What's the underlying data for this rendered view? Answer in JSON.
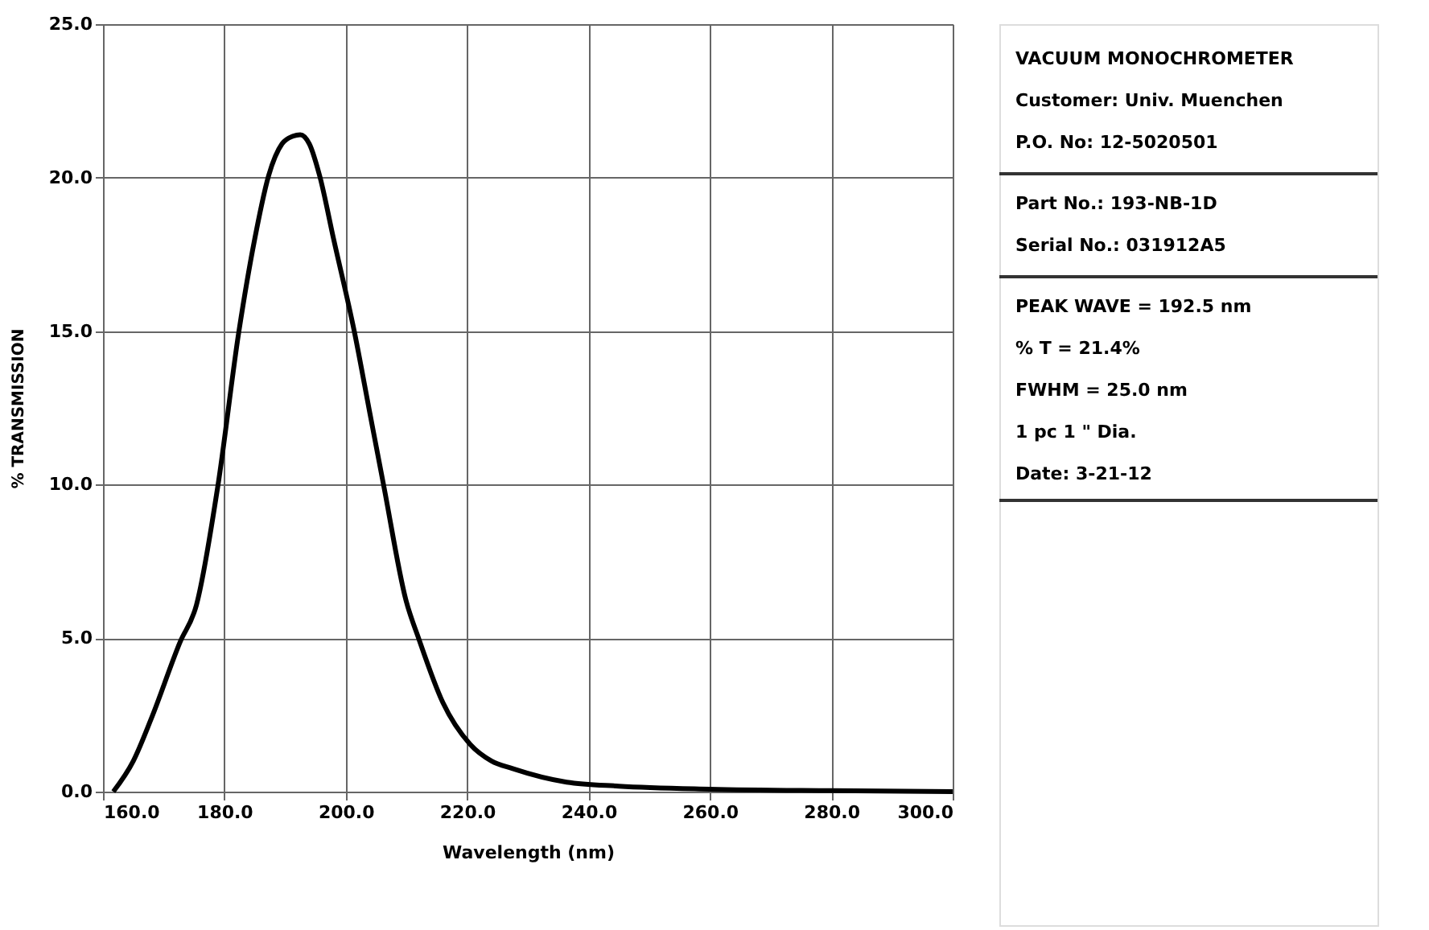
{
  "chart_data": {
    "type": "line",
    "xlabel": "Wavelength (nm)",
    "ylabel": "% TRANSMISSION",
    "x": [
      161.7,
      165,
      168,
      172.7,
      175.4,
      178.9,
      182.4,
      185,
      187.3,
      189.5,
      191.3,
      192.5,
      194,
      195.7,
      198,
      201.4,
      204,
      206.3,
      209.9,
      212.1,
      216,
      220.5,
      224,
      227.5,
      236.4,
      245,
      260,
      280,
      300
    ],
    "series": [
      {
        "color": "#000000",
        "values": [
          0,
          1.0,
          2.4,
          4.87,
          6.08,
          9.92,
          15.0,
          18.0,
          20.07,
          21.1,
          21.35,
          21.4,
          21.1,
          20.06,
          18.0,
          15.0,
          12.3,
          9.92,
          6.25,
          4.94,
          2.9,
          1.54,
          1.0,
          0.75,
          0.31,
          0.18,
          0.08,
          0.03,
          0.0
        ]
      }
    ],
    "xlim": [
      160,
      300
    ],
    "ylim": [
      0,
      25
    ],
    "xticks": [
      {
        "value": 160,
        "label": "160.0"
      },
      {
        "value": 180,
        "label": "180.0"
      },
      {
        "value": 200,
        "label": "200.0"
      },
      {
        "value": 220,
        "label": "220.0"
      },
      {
        "value": 240,
        "label": "240.0"
      },
      {
        "value": 260,
        "label": "260.0"
      },
      {
        "value": 280,
        "label": "280.0"
      },
      {
        "value": 300,
        "label": "300.0"
      }
    ],
    "yticks": [
      {
        "value": 0,
        "label": "0.0"
      },
      {
        "value": 5,
        "label": "5.0"
      },
      {
        "value": 10,
        "label": "10.0"
      },
      {
        "value": 15,
        "label": "15.0"
      },
      {
        "value": 20,
        "label": "20.0"
      },
      {
        "value": 25,
        "label": "25.0"
      }
    ],
    "grid": true,
    "line_style": "solid",
    "marker": "none",
    "annotations": [
      "VACUUM MONOCHROMETER",
      "Customer:  Univ. Muenchen",
      "P.O. No: 12-5020501",
      "Part No.: 193-NB-1D",
      "Serial No.: 031912A5",
      "PEAK WAVE =   192.5 nm",
      "% T   =   21.4%",
      "FWHM   =   25.0 nm",
      "1 pc   1 \" Dia.",
      "Date: 3-21-12"
    ]
  }
}
